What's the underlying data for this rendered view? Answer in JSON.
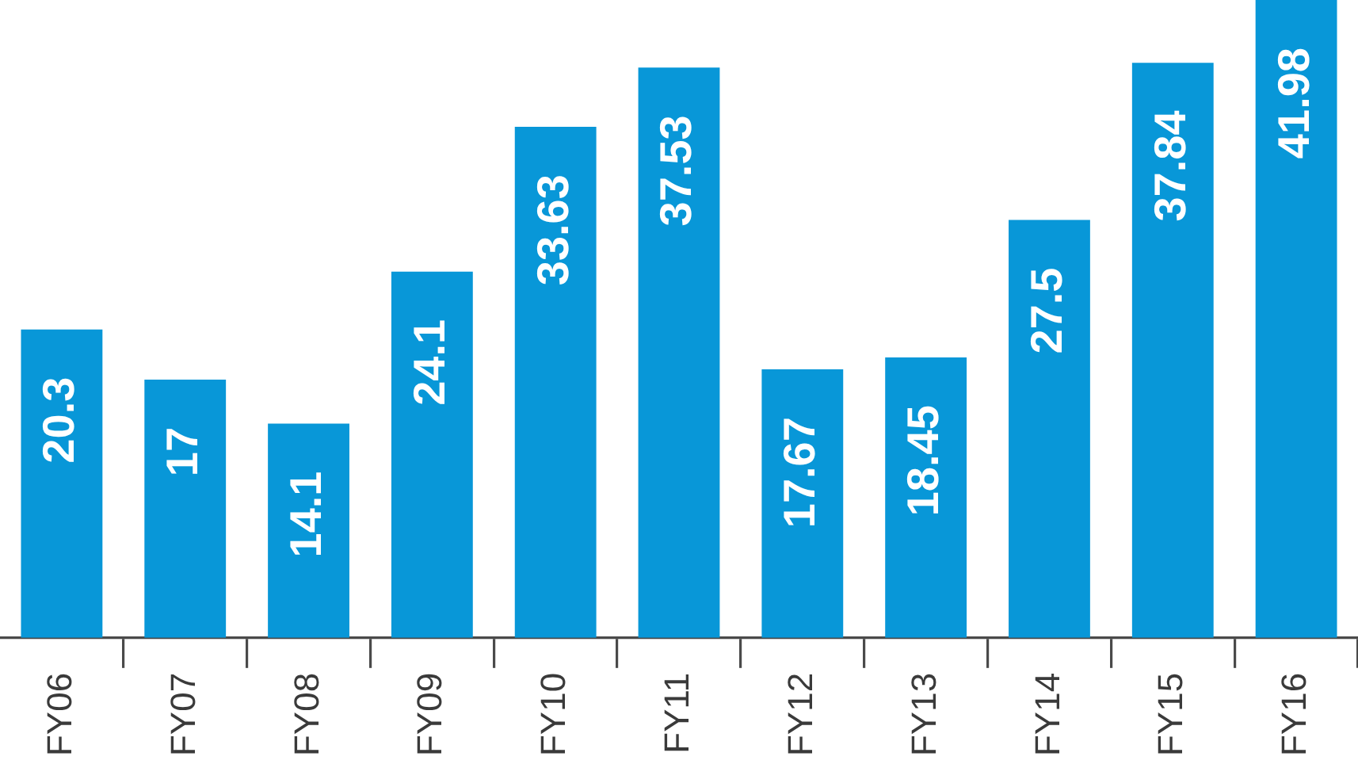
{
  "chart_data": {
    "type": "bar",
    "categories": [
      "FY06",
      "FY07",
      "FY08",
      "FY09",
      "FY10",
      "FY11",
      "FY12",
      "FY13",
      "FY14",
      "FY15",
      "FY16"
    ],
    "values": [
      20.3,
      17,
      14.1,
      24.1,
      33.63,
      37.53,
      17.67,
      18.45,
      27.5,
      37.84,
      41.98
    ],
    "color": "#0897d8",
    "data_labels": true,
    "tick_labels": "x"
  }
}
